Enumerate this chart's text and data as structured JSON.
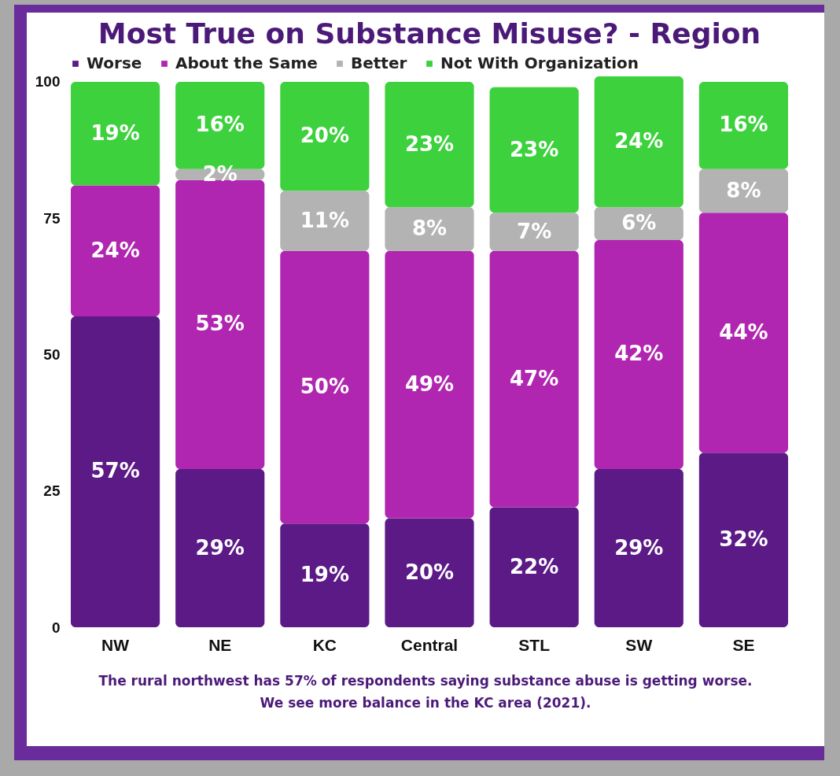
{
  "chart_data": {
    "type": "bar",
    "title": "Most True on Substance Misuse? - Region",
    "stacked": true,
    "legend": "top",
    "ylim": [
      0,
      101
    ],
    "yticks": [
      0,
      25,
      50,
      75,
      100
    ],
    "grid": false,
    "categories": [
      "NW",
      "NE",
      "KC",
      "Central",
      "STL",
      "SW",
      "SE"
    ],
    "series": [
      {
        "name": "Worse",
        "color": "#5c1a87",
        "values": [
          57,
          29,
          19,
          20,
          22,
          29,
          32
        ],
        "value_labels": [
          "57%",
          "29%",
          "19%",
          "20%",
          "22%",
          "29%",
          "32%"
        ]
      },
      {
        "name": "About the Same",
        "color": "#b026b0",
        "values": [
          24,
          53,
          50,
          49,
          47,
          42,
          44
        ],
        "value_labels": [
          "24%",
          "53%",
          "50%",
          "49%",
          "47%",
          "42%",
          "44%"
        ]
      },
      {
        "name": "Better",
        "color": "#b3b3b3",
        "values": [
          null,
          2,
          11,
          8,
          7,
          6,
          8
        ],
        "value_labels": [
          null,
          "2%",
          "11%",
          "8%",
          "7%",
          "6%",
          "8%"
        ]
      },
      {
        "name": "Not With Organization",
        "color": "#3dd13d",
        "values": [
          19,
          16,
          20,
          23,
          23,
          24,
          16
        ],
        "value_labels": [
          "19%",
          "16%",
          "20%",
          "23%",
          "23%",
          "24%",
          "16%"
        ]
      }
    ],
    "annotations": [
      "The rural northwest has 57% of respondents saying substance abuse is getting worse.",
      "We see more balance in the KC area (2021)."
    ]
  }
}
